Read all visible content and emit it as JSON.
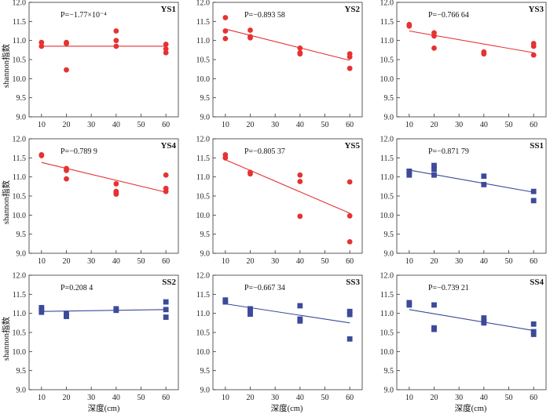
{
  "figure": {
    "ylabel": "shannon指数",
    "xlabel": "深度(cm)"
  },
  "colors": {
    "red": "#e63232",
    "blue": "#3c4a9a"
  },
  "chart_data": [
    {
      "type": "scatter",
      "name": "YS1",
      "annotation": "P=−1.77×10⁻⁴",
      "marker": "circle",
      "color": "#e63232",
      "xticks": [
        10,
        20,
        30,
        40,
        50,
        60
      ],
      "yticks": [
        "9.0",
        "9.5",
        "10.0",
        "10.5",
        "11.0",
        "11.5",
        "12.0"
      ],
      "xlim": [
        5,
        65
      ],
      "ylim": [
        9.0,
        12.0
      ],
      "points": [
        [
          10,
          10.95
        ],
        [
          10,
          10.85
        ],
        [
          20,
          10.95
        ],
        [
          20,
          10.92
        ],
        [
          20,
          10.23
        ],
        [
          40,
          11.25
        ],
        [
          40,
          11.0
        ],
        [
          40,
          10.85
        ],
        [
          60,
          10.9
        ],
        [
          60,
          10.78
        ],
        [
          60,
          10.68
        ]
      ],
      "trend": [
        [
          10,
          10.85
        ],
        [
          60,
          10.85
        ]
      ]
    },
    {
      "type": "scatter",
      "name": "YS2",
      "annotation": "P=−0.893 58",
      "marker": "circle",
      "color": "#e63232",
      "xticks": [
        10,
        20,
        30,
        40,
        50,
        60
      ],
      "yticks": [
        "9.0",
        "9.5",
        "10.0",
        "10.5",
        "11.0",
        "11.5",
        "12.0"
      ],
      "xlim": [
        5,
        65
      ],
      "ylim": [
        9.0,
        12.0
      ],
      "points": [
        [
          10,
          11.6
        ],
        [
          10,
          11.25
        ],
        [
          10,
          11.05
        ],
        [
          20,
          11.27
        ],
        [
          20,
          11.1
        ],
        [
          20,
          11.07
        ],
        [
          40,
          10.8
        ],
        [
          40,
          10.68
        ],
        [
          40,
          10.65
        ],
        [
          60,
          10.65
        ],
        [
          60,
          10.57
        ],
        [
          60,
          10.27
        ]
      ],
      "trend": [
        [
          10,
          11.3
        ],
        [
          60,
          10.48
        ]
      ]
    },
    {
      "type": "scatter",
      "name": "YS3",
      "annotation": "P=−0.766 64",
      "marker": "circle",
      "color": "#e63232",
      "xticks": [
        10,
        20,
        30,
        40,
        50,
        60
      ],
      "yticks": [
        "9.0",
        "9.5",
        "10.0",
        "10.5",
        "11.0",
        "11.5",
        "12.0"
      ],
      "xlim": [
        5,
        65
      ],
      "ylim": [
        9.0,
        12.0
      ],
      "points": [
        [
          10,
          11.42
        ],
        [
          10,
          11.38
        ],
        [
          20,
          11.2
        ],
        [
          20,
          11.12
        ],
        [
          20,
          10.8
        ],
        [
          40,
          10.7
        ],
        [
          40,
          10.65
        ],
        [
          60,
          10.92
        ],
        [
          60,
          10.85
        ],
        [
          60,
          10.62
        ]
      ],
      "trend": [
        [
          10,
          11.25
        ],
        [
          60,
          10.68
        ]
      ]
    },
    {
      "type": "scatter",
      "name": "YS4",
      "annotation": "P=−0.789 9",
      "marker": "circle",
      "color": "#e63232",
      "xticks": [
        10,
        20,
        30,
        40,
        50,
        60
      ],
      "yticks": [
        "9.0",
        "9.5",
        "10.0",
        "10.5",
        "11.0",
        "11.5",
        "12.0"
      ],
      "xlim": [
        5,
        65
      ],
      "ylim": [
        9.0,
        12.0
      ],
      "points": [
        [
          10,
          11.58
        ],
        [
          10,
          11.56
        ],
        [
          20,
          11.22
        ],
        [
          20,
          11.17
        ],
        [
          20,
          10.95
        ],
        [
          40,
          10.82
        ],
        [
          40,
          10.62
        ],
        [
          40,
          10.58
        ],
        [
          40,
          10.55
        ],
        [
          60,
          11.05
        ],
        [
          60,
          10.7
        ],
        [
          60,
          10.62
        ]
      ],
      "trend": [
        [
          10,
          11.38
        ],
        [
          60,
          10.6
        ]
      ]
    },
    {
      "type": "scatter",
      "name": "YS5",
      "annotation": "P=−0.805 37",
      "marker": "circle",
      "color": "#e63232",
      "xticks": [
        10,
        20,
        30,
        40,
        50,
        60
      ],
      "yticks": [
        "9.0",
        "9.5",
        "10.0",
        "10.5",
        "11.0",
        "11.5",
        "12.0"
      ],
      "xlim": [
        5,
        65
      ],
      "ylim": [
        9.0,
        12.0
      ],
      "points": [
        [
          10,
          11.58
        ],
        [
          10,
          11.5
        ],
        [
          20,
          11.12
        ],
        [
          20,
          11.08
        ],
        [
          40,
          11.05
        ],
        [
          40,
          10.88
        ],
        [
          40,
          9.97
        ],
        [
          60,
          10.87
        ],
        [
          60,
          9.98
        ],
        [
          60,
          9.3
        ]
      ],
      "trend": [
        [
          10,
          11.45
        ],
        [
          60,
          10.05
        ]
      ]
    },
    {
      "type": "scatter",
      "name": "SS1",
      "annotation": "P=−0.871 79",
      "marker": "square",
      "color": "#3c4a9a",
      "xticks": [
        10,
        20,
        30,
        40,
        50,
        60
      ],
      "yticks": [
        "9.0",
        "9.5",
        "10.0",
        "10.5",
        "11.0",
        "11.5",
        "12.0"
      ],
      "xlim": [
        5,
        65
      ],
      "ylim": [
        9.0,
        12.0
      ],
      "points": [
        [
          10,
          11.15
        ],
        [
          10,
          11.12
        ],
        [
          10,
          11.05
        ],
        [
          20,
          11.3
        ],
        [
          20,
          11.2
        ],
        [
          20,
          11.05
        ],
        [
          40,
          11.02
        ],
        [
          40,
          10.8
        ],
        [
          60,
          10.62
        ],
        [
          60,
          10.38
        ]
      ],
      "trend": [
        [
          10,
          11.18
        ],
        [
          60,
          10.6
        ]
      ]
    },
    {
      "type": "scatter",
      "name": "SS2",
      "annotation": "P=0.208 4",
      "marker": "square",
      "color": "#3c4a9a",
      "xticks": [
        10,
        20,
        30,
        40,
        50,
        60
      ],
      "yticks": [
        "9.0",
        "9.5",
        "10.0",
        "10.5",
        "11.0",
        "11.5",
        "12.0"
      ],
      "xlim": [
        5,
        65
      ],
      "ylim": [
        9.0,
        12.0
      ],
      "points": [
        [
          10,
          11.15
        ],
        [
          10,
          11.1
        ],
        [
          10,
          11.03
        ],
        [
          20,
          11.0
        ],
        [
          20,
          10.95
        ],
        [
          20,
          10.92
        ],
        [
          40,
          11.12
        ],
        [
          40,
          11.08
        ],
        [
          60,
          11.3
        ],
        [
          60,
          11.1
        ],
        [
          60,
          10.9
        ]
      ],
      "trend": [
        [
          10,
          11.05
        ],
        [
          60,
          11.1
        ]
      ]
    },
    {
      "type": "scatter",
      "name": "SS3",
      "annotation": "P=−0.667 34",
      "marker": "square",
      "color": "#3c4a9a",
      "xticks": [
        10,
        20,
        30,
        40,
        50,
        60
      ],
      "yticks": [
        "9.0",
        "9.5",
        "10.0",
        "10.5",
        "11.0",
        "11.5",
        "12.0"
      ],
      "xlim": [
        5,
        65
      ],
      "ylim": [
        9.0,
        12.0
      ],
      "points": [
        [
          10,
          11.35
        ],
        [
          10,
          11.3
        ],
        [
          20,
          11.12
        ],
        [
          20,
          11.05
        ],
        [
          20,
          10.98
        ],
        [
          40,
          11.2
        ],
        [
          40,
          10.85
        ],
        [
          40,
          10.8
        ],
        [
          60,
          11.05
        ],
        [
          60,
          10.97
        ],
        [
          60,
          10.33
        ]
      ],
      "trend": [
        [
          10,
          11.25
        ],
        [
          60,
          10.75
        ]
      ]
    },
    {
      "type": "scatter",
      "name": "SS4",
      "annotation": "P=−0.739 21",
      "marker": "square",
      "color": "#3c4a9a",
      "xticks": [
        10,
        20,
        30,
        40,
        50,
        60
      ],
      "yticks": [
        "9.0",
        "9.5",
        "10.0",
        "10.5",
        "11.0",
        "11.5",
        "12.0"
      ],
      "xlim": [
        5,
        65
      ],
      "ylim": [
        9.0,
        12.0
      ],
      "points": [
        [
          10,
          11.28
        ],
        [
          10,
          11.22
        ],
        [
          20,
          11.22
        ],
        [
          20,
          10.62
        ],
        [
          20,
          10.58
        ],
        [
          40,
          10.88
        ],
        [
          40,
          10.8
        ],
        [
          40,
          10.75
        ],
        [
          60,
          10.72
        ],
        [
          60,
          10.52
        ],
        [
          60,
          10.45
        ]
      ],
      "trend": [
        [
          10,
          11.1
        ],
        [
          60,
          10.55
        ]
      ]
    }
  ]
}
